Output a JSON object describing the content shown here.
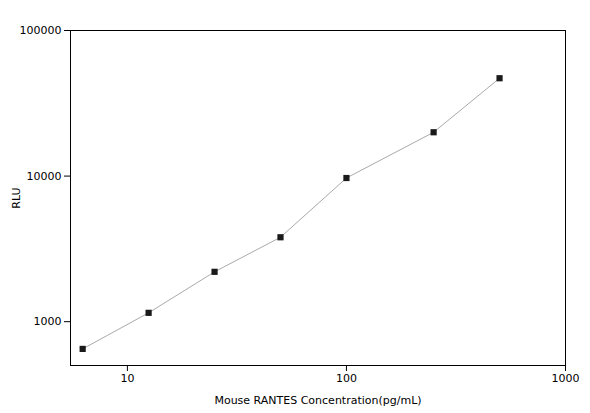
{
  "chart_data": {
    "type": "line",
    "x": [
      6.25,
      12.5,
      25,
      50,
      100,
      250,
      500
    ],
    "values": [
      650,
      1150,
      2200,
      3800,
      9700,
      20000,
      47000
    ],
    "xlim": [
      5.5,
      1000
    ],
    "ylim": [
      500,
      100000
    ],
    "xticks": [
      10,
      100,
      1000
    ],
    "yticks": [
      1000,
      10000,
      100000
    ],
    "xlabel": "Mouse RANTES Concentration(pg/mL)",
    "ylabel": "RLU",
    "log": true,
    "grid": false,
    "color": "#aaaaaa",
    "colors": [
      "#1a1a1a",
      "#1a1a1a",
      "#1a1a1a",
      "#1a1a1a",
      "#1a1a1a",
      "#1a1a1a",
      "#1a1a1a"
    ],
    "marker": "square"
  }
}
